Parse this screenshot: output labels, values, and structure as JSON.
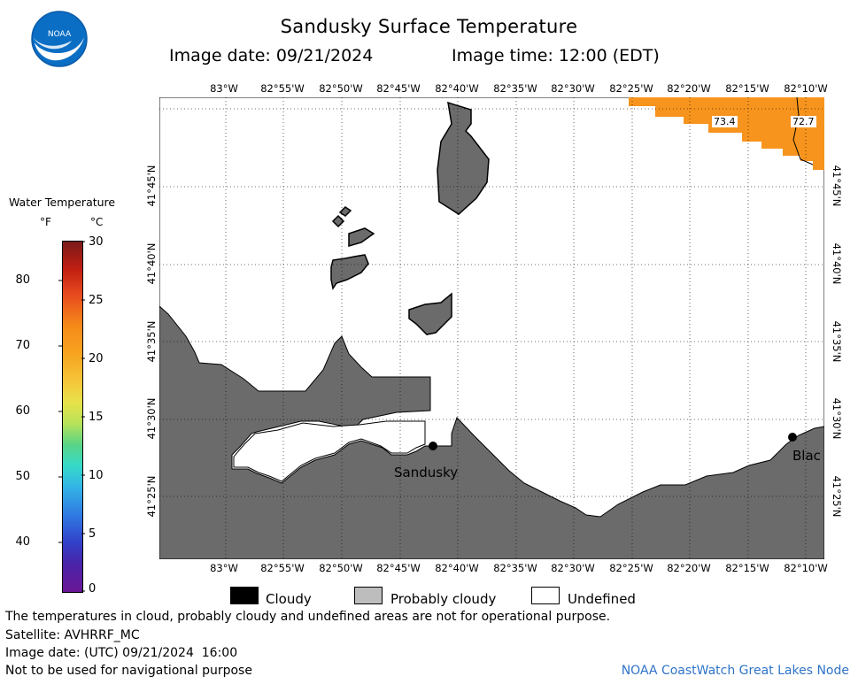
{
  "header": {
    "title": "Sandusky Surface Temperature",
    "image_date": "Image date: 09/21/2024",
    "image_time": "Image time: 12:00 (EDT)"
  },
  "logo": {
    "text": "NOAA",
    "icon": "noaa-logo-icon"
  },
  "map": {
    "lon_labels": [
      "83°W",
      "82°55'W",
      "82°50'W",
      "82°45'W",
      "82°40'W",
      "82°35'W",
      "82°30'W",
      "82°25'W",
      "82°20'W",
      "82°15'W",
      "82°10'W"
    ],
    "lat_labels": [
      "41°45'N",
      "41°40'N",
      "41°35'N",
      "41°30'N",
      "41°25'N"
    ],
    "places": [
      {
        "name": "Sandusky"
      },
      {
        "name": "Blac"
      }
    ],
    "temperature_labels": [
      "73.4",
      "72.7"
    ],
    "colors": {
      "land": "#6b6b6b",
      "warm_water": "#f7941d",
      "water_undefined": "#ffffff"
    }
  },
  "legend": {
    "title": "Water Temperature",
    "unit_f": "°F",
    "unit_c": "°C",
    "f_ticks": [
      "80",
      "70",
      "60",
      "50",
      "40"
    ],
    "c_ticks": [
      "30",
      "25",
      "20",
      "15",
      "10",
      "5",
      "0"
    ]
  },
  "key": {
    "cloudy": "Cloudy",
    "probably_cloudy": "Probably cloudy",
    "undefined": "Undefined"
  },
  "footer": {
    "disclaimer": "The temperatures in cloud, probably cloudy and undefined areas are not for operational purpose.",
    "satellite": "Satellite: AVHRRF_MC",
    "utc_date": "Image date: (UTC) 09/21/2024  16:00",
    "nav_warning": "Not to be used for navigational purpose",
    "credit": "NOAA CoastWatch Great Lakes Node"
  }
}
